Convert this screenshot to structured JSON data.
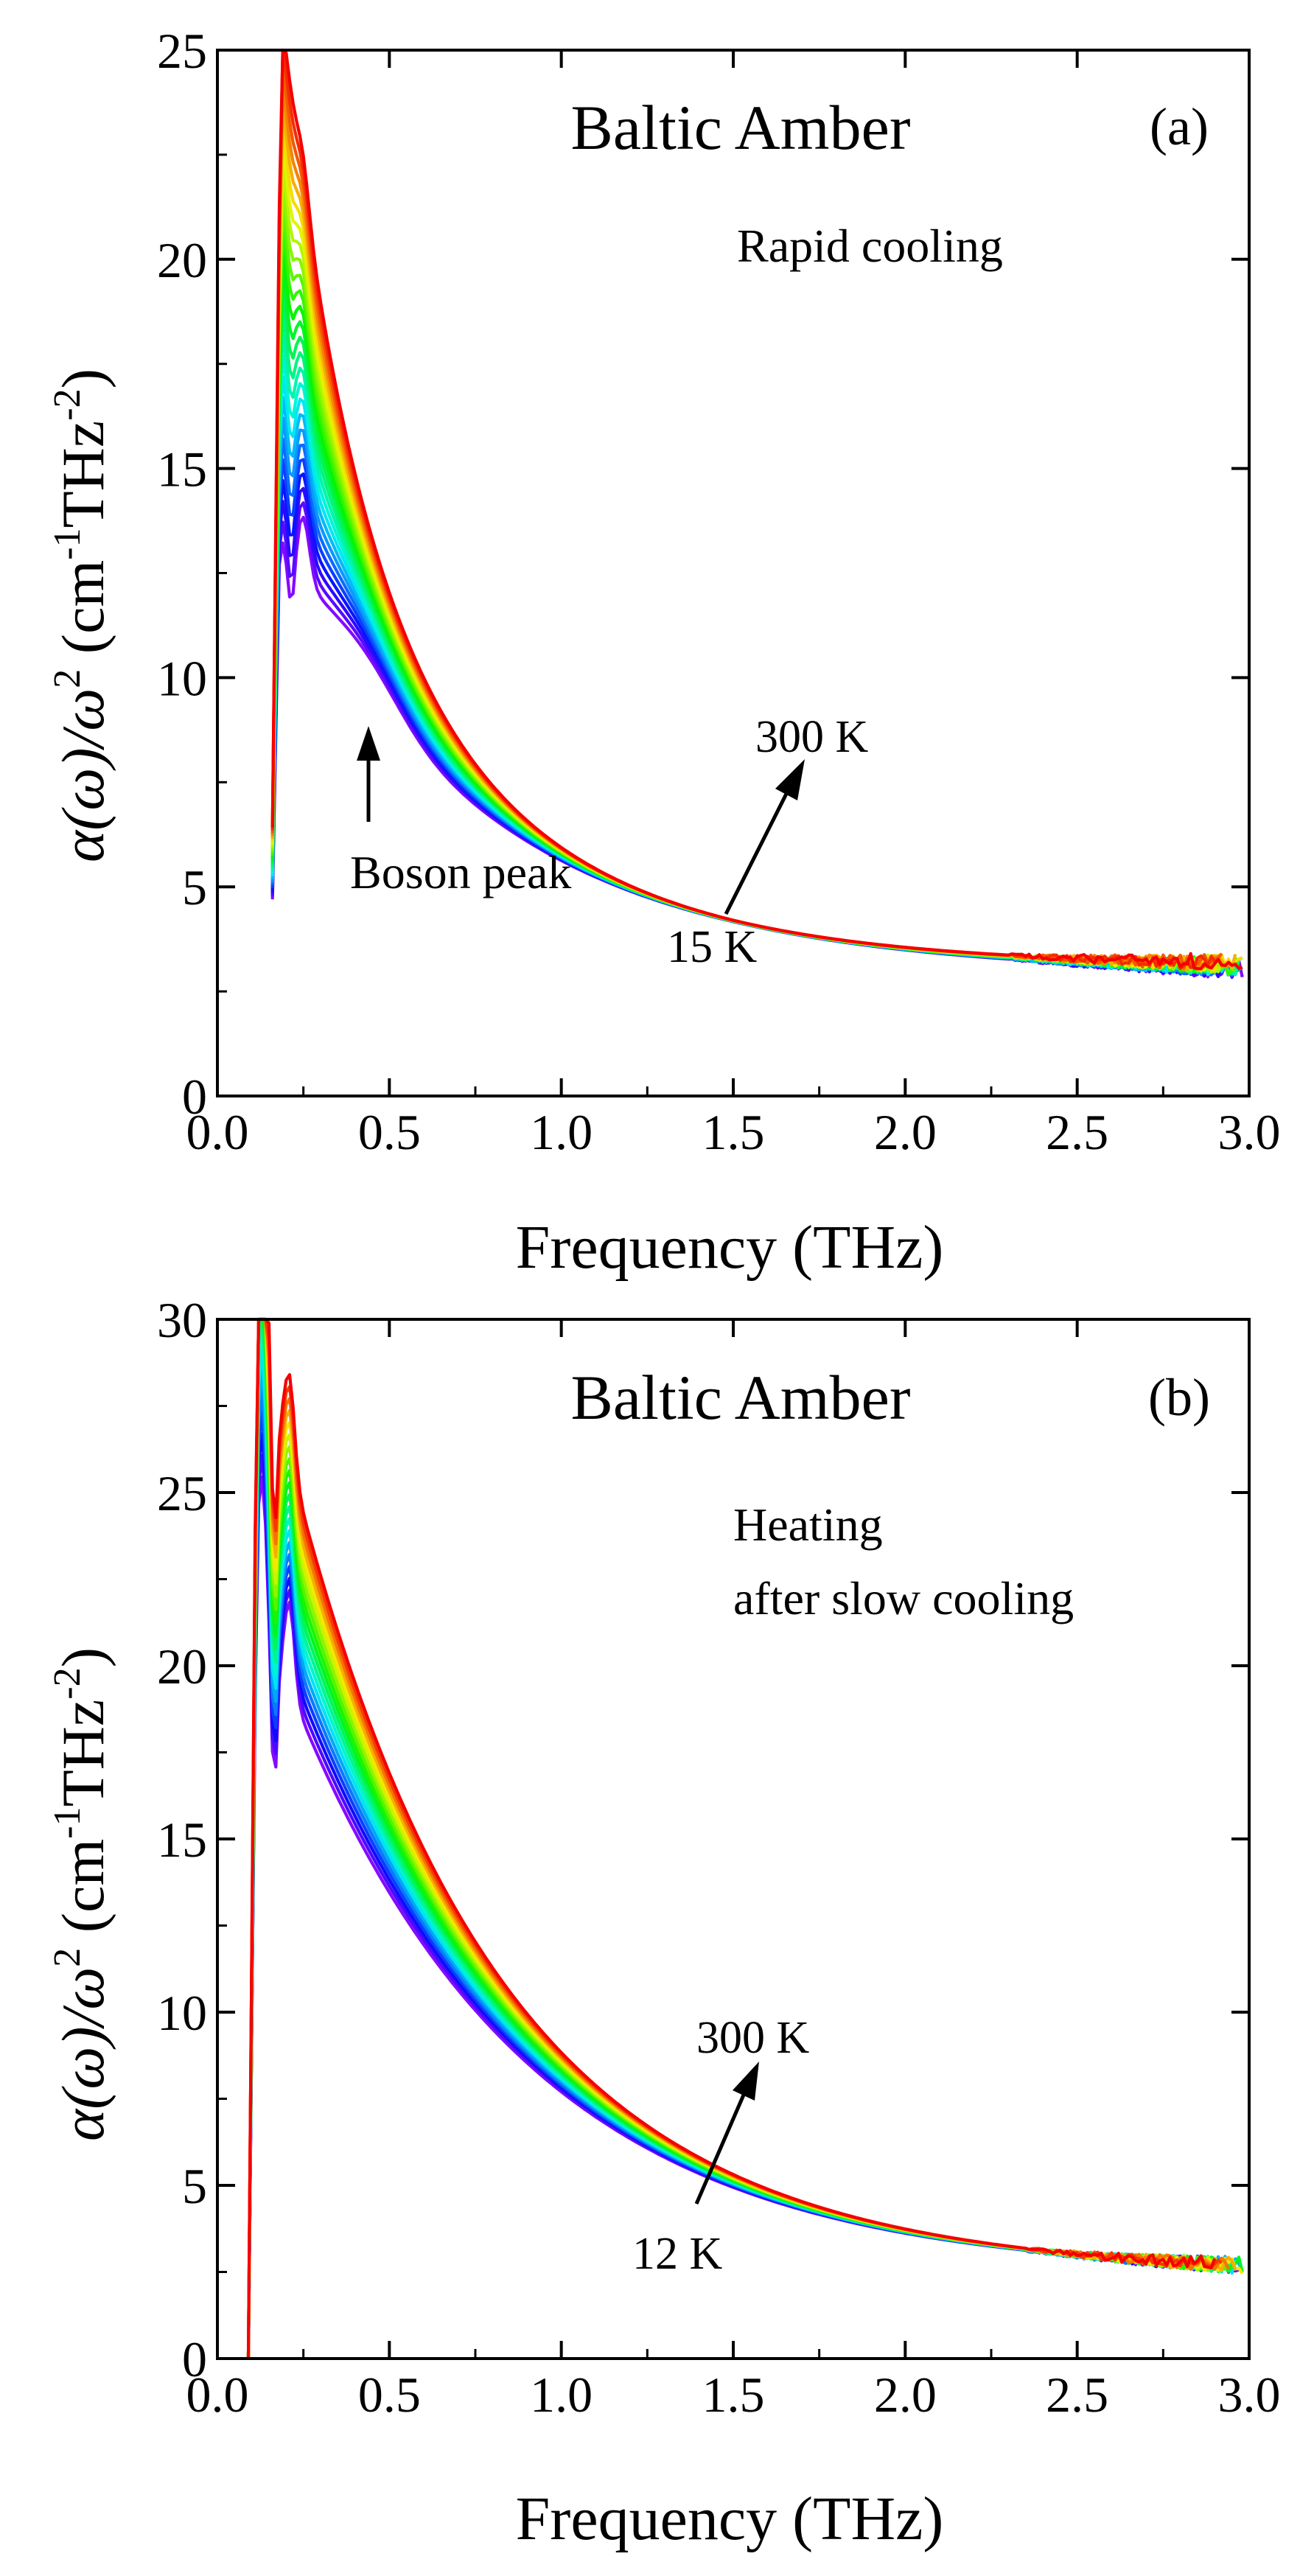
{
  "chart_data": [
    {
      "type": "line",
      "panel": "a",
      "title": "Baltic Amber",
      "panel_label": "(a)",
      "condition": [
        "Rapid cooling"
      ],
      "xlabel": "Frequency (THz)",
      "ylabel": "α(ω)/ω² (cm⁻¹THz⁻²)",
      "ylabel_parts": [
        "α(ω)/ω",
        "2",
        " (cm",
        "-1",
        "THz",
        "-2",
        ")"
      ],
      "xlim": [
        0.0,
        3.0
      ],
      "ylim": [
        0,
        25
      ],
      "xticks": [
        "0.0",
        "0.5",
        "1.0",
        "1.5",
        "2.0",
        "2.5",
        "3.0"
      ],
      "yticks": [
        "0",
        "5",
        "10",
        "15",
        "20",
        "25"
      ],
      "temperature_range_K": [
        15,
        300
      ],
      "series_count": 26,
      "annotations": {
        "low_T": "15 K",
        "high_T": "300 K",
        "peak": "Boson peak",
        "peak_x": 0.42,
        "peak_y": 9.3
      },
      "series_hint": "rainbow gradient: violet = 15 K, red = 300 K"
    },
    {
      "type": "line",
      "panel": "b",
      "title": "Baltic Amber",
      "panel_label": "(b)",
      "condition": [
        "Heating",
        "after slow cooling"
      ],
      "xlabel": "Frequency (THz)",
      "ylabel": "α(ω)/ω² (cm⁻¹THz⁻²)",
      "ylabel_parts": [
        "α(ω)/ω",
        "2",
        " (cm",
        "-1",
        "THz",
        "-2",
        ")"
      ],
      "xlim": [
        0.0,
        3.0
      ],
      "ylim": [
        0,
        30
      ],
      "xticks": [
        "0.0",
        "0.5",
        "1.0",
        "1.5",
        "2.0",
        "2.5",
        "3.0"
      ],
      "yticks": [
        "0",
        "5",
        "10",
        "15",
        "20",
        "25",
        "30"
      ],
      "temperature_range_K": [
        12,
        300
      ],
      "series_count": 20,
      "annotations": {
        "low_T": "12 K",
        "high_T": "300 K"
      },
      "series_hint": "rainbow gradient: violet = 12 K, red = 300 K"
    }
  ],
  "colors": {
    "cold": "#7a1fd6",
    "hot": "#ff1a00",
    "axis": "#000000"
  }
}
